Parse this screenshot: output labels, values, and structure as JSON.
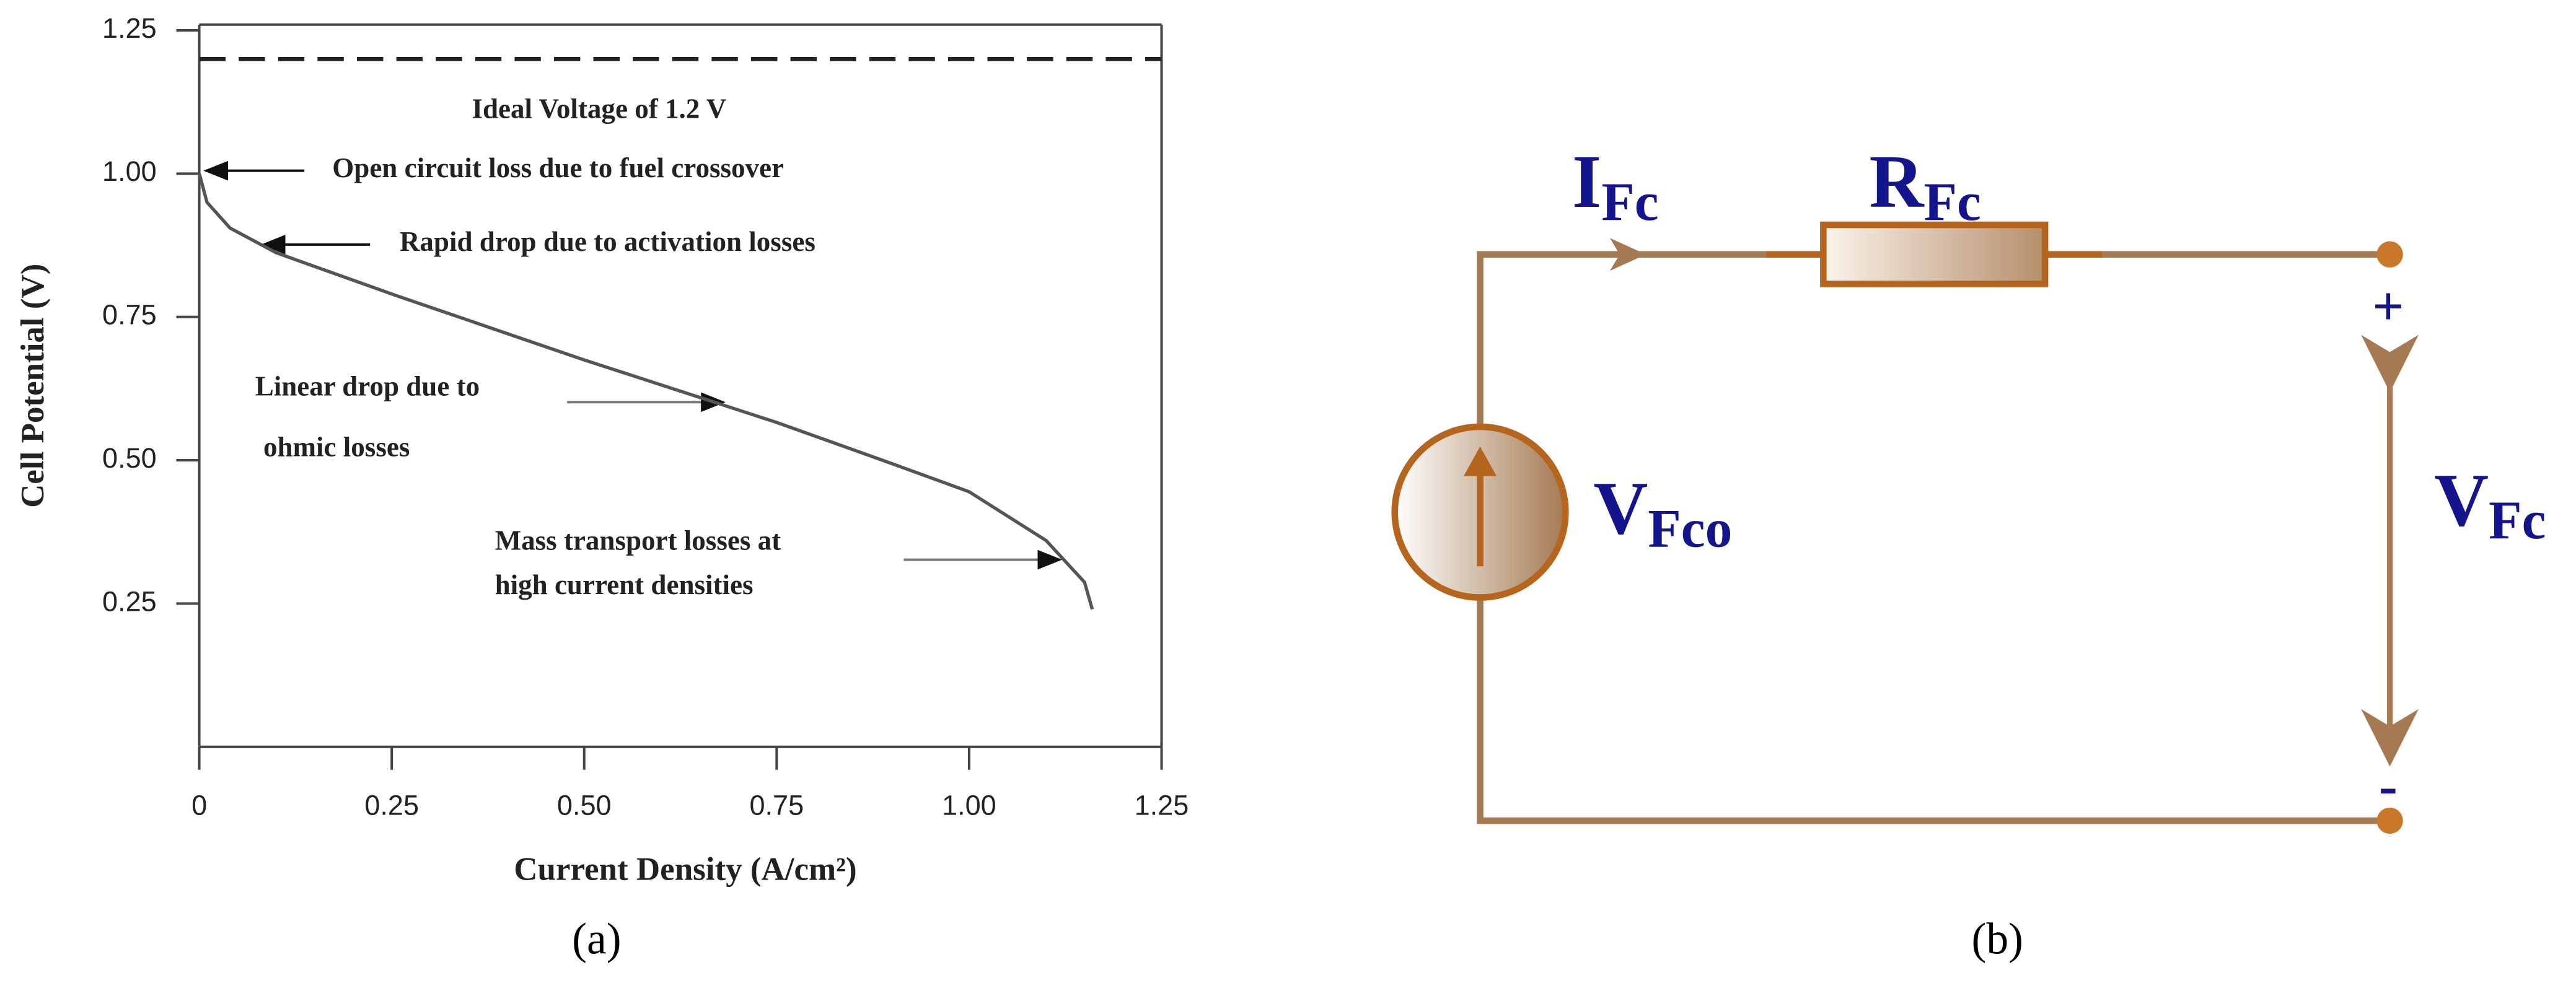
{
  "chart_data": {
    "type": "line",
    "xlabel": "Current Density (A/cm²)",
    "ylabel": "Cell Potential (V)",
    "x": [
      0,
      0.01,
      0.04,
      0.1,
      0.25,
      0.5,
      0.75,
      0.9,
      1.0,
      1.1,
      1.15,
      1.16
    ],
    "values": [
      1.0,
      0.95,
      0.905,
      0.862,
      0.79,
      0.675,
      0.566,
      0.494,
      0.445,
      0.36,
      0.287,
      0.24
    ],
    "color": "#555555",
    "reference_line": 1.2,
    "xlim": [
      0,
      1.25
    ],
    "ylim": [
      0,
      1.26
    ],
    "xticks": [
      0,
      0.25,
      {
        "value": 0.5,
        "label": "0.50"
      },
      0.75,
      {
        "value": 1,
        "label": "1.00"
      },
      1.25
    ],
    "yticks": [
      0.25,
      {
        "value": 0.5,
        "label": "0.50"
      },
      0.75,
      {
        "value": 1,
        "label": "1.00"
      },
      1.25
    ],
    "annotations": [
      "Ideal Voltage of 1.2 V",
      "Open circuit loss due to fuel crossover",
      "Rapid drop due to activation losses",
      "Linear drop due to",
      "ohmic losses",
      "Mass transport losses at",
      "high current densities"
    ]
  },
  "diagram": {
    "current": {
      "main": "I",
      "sub": "Fc"
    },
    "resistor": {
      "main": "R",
      "sub": "Fc"
    },
    "source": {
      "main": "V",
      "sub": "Fco"
    },
    "output": {
      "main": "V",
      "sub": "Fc"
    },
    "plus": "+",
    "minus": "-"
  },
  "captions": [
    "(a)",
    "(b)"
  ]
}
